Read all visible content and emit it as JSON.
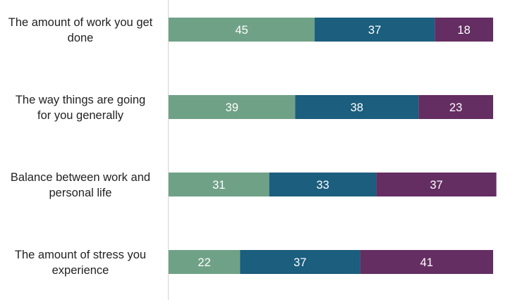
{
  "chart_data": {
    "type": "bar",
    "orientation": "horizontal",
    "stacked": true,
    "categories": [
      [
        "The amount of work you get",
        "done"
      ],
      [
        "The way things are going",
        "for you generally"
      ],
      [
        "Balance between work and",
        "personal life"
      ],
      [
        "The amount of stress you",
        "experience"
      ]
    ],
    "series": [
      {
        "values": [
          45,
          39,
          31,
          22
        ],
        "color": "#6fa187"
      },
      {
        "values": [
          37,
          38,
          33,
          37
        ],
        "color": "#1b5e7e"
      },
      {
        "values": [
          18,
          23,
          37,
          41
        ],
        "color": "#642e62"
      }
    ],
    "xlim": [
      0,
      100
    ],
    "grid": false,
    "legend": "none",
    "show_values": true
  }
}
